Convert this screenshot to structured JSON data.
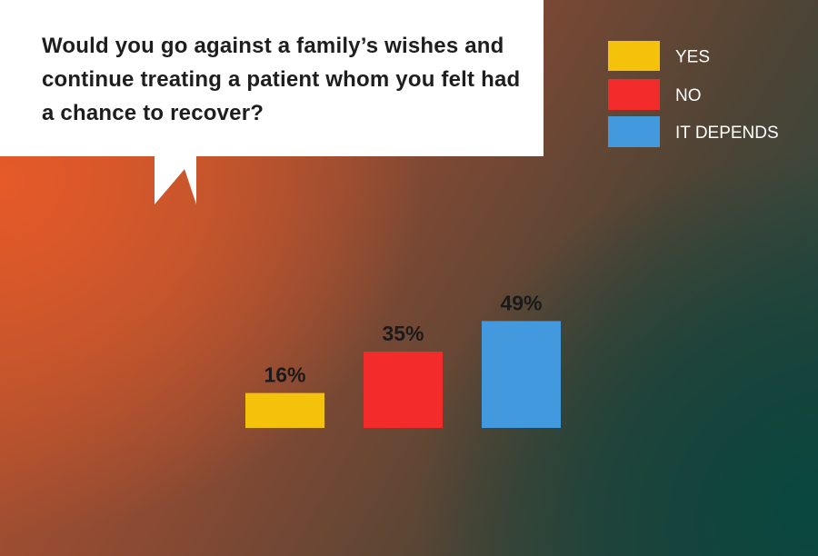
{
  "question": "Would you go against a family’s wishes and continue treating a patient whom you felt had a chance to recover?",
  "chart_data": {
    "type": "bar",
    "categories": [
      "YES",
      "NO",
      "IT DEPENDS"
    ],
    "values": [
      16,
      35,
      49
    ],
    "value_labels": [
      "16%",
      "35%",
      "49%"
    ],
    "colors": [
      "#f5c20b",
      "#f32b2b",
      "#4399dd"
    ],
    "legend": [
      "YES",
      "NO",
      "IT DEPENDS"
    ],
    "legend_position": "top-right",
    "ylim": [
      0,
      100
    ],
    "grid": false
  }
}
